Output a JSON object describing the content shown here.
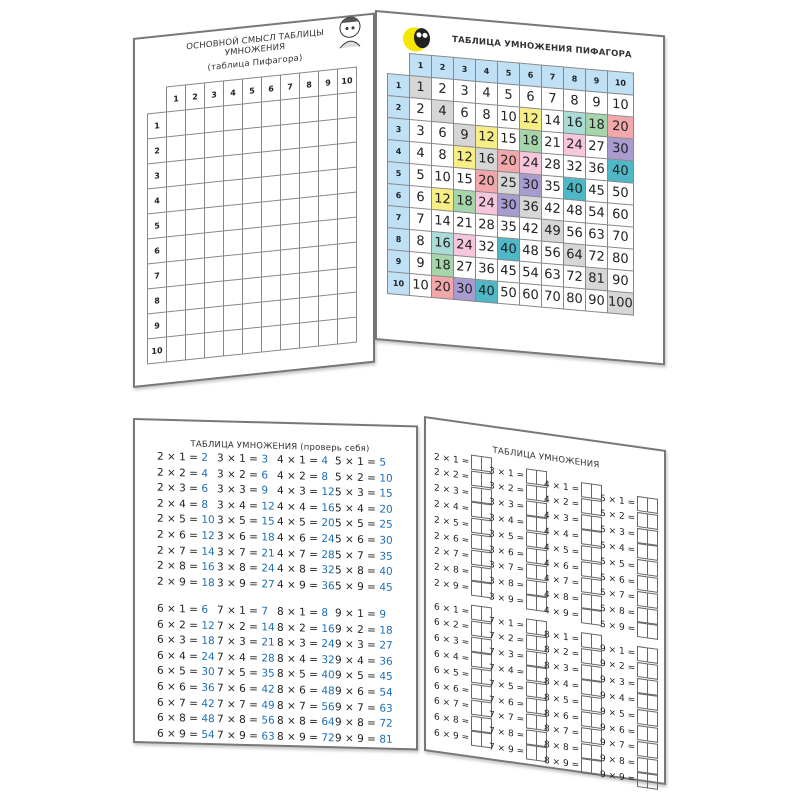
{
  "page1": {
    "title_line1": "ОСНОВНОЙ СМЫСЛ ТАБЛИЦЫ УМНОЖЕНИЯ",
    "title_line2": "(таблица Пифагора)",
    "headers": [
      "1",
      "2",
      "3",
      "4",
      "5",
      "6",
      "7",
      "8",
      "9",
      "10"
    ]
  },
  "page2": {
    "title": "ТАБЛИЦА УМНОЖЕНИЯ ПИФАГОРА",
    "headers": [
      "1",
      "2",
      "3",
      "4",
      "5",
      "6",
      "7",
      "8",
      "9",
      "10"
    ],
    "rows": [
      [
        1,
        2,
        3,
        4,
        5,
        6,
        7,
        8,
        9,
        10
      ],
      [
        2,
        4,
        6,
        8,
        10,
        12,
        14,
        16,
        18,
        20
      ],
      [
        3,
        6,
        9,
        12,
        15,
        18,
        21,
        24,
        27,
        30
      ],
      [
        4,
        8,
        12,
        16,
        20,
        24,
        28,
        32,
        36,
        40
      ],
      [
        5,
        10,
        15,
        20,
        25,
        30,
        35,
        40,
        45,
        50
      ],
      [
        6,
        12,
        18,
        24,
        30,
        36,
        42,
        48,
        54,
        60
      ],
      [
        7,
        14,
        21,
        28,
        35,
        42,
        49,
        56,
        63,
        70
      ],
      [
        8,
        16,
        24,
        32,
        40,
        48,
        56,
        64,
        72,
        80
      ],
      [
        9,
        18,
        27,
        36,
        45,
        54,
        63,
        72,
        81,
        90
      ],
      [
        10,
        20,
        30,
        40,
        50,
        60,
        70,
        80,
        90,
        100
      ]
    ],
    "colors": {
      "header": "#bfe0f5",
      "diagonal": "#d6d6d6",
      "12": "#f7ee86",
      "16": "#a9dcd6",
      "18": "#a6d5ac",
      "20": "#f2a8ab",
      "24": "#f6c6dc",
      "30": "#a79bd0",
      "40": "#4fb8c6"
    }
  },
  "page3": {
    "title": "ТАБЛИЦА УМНОЖЕНИЯ (проверь себя)",
    "answer_color": "#1f6fb5",
    "columns": [
      [
        [
          "2 × 1 = ",
          "2"
        ],
        [
          "2 × 2 = ",
          "4"
        ],
        [
          "2 × 3 = ",
          "6"
        ],
        [
          "2 × 4 = ",
          "8"
        ],
        [
          "2 × 5 = ",
          "10"
        ],
        [
          "2 × 6 = ",
          "12"
        ],
        [
          "2 × 7 = ",
          "14"
        ],
        [
          "2 × 8 = ",
          "16"
        ],
        [
          "2 × 9 = ",
          "18"
        ]
      ],
      [
        [
          "3 × 1 = ",
          "3"
        ],
        [
          "3 × 2 = ",
          "6"
        ],
        [
          "3 × 3 = ",
          "9"
        ],
        [
          "3 × 4 = ",
          "12"
        ],
        [
          "3 × 5 = ",
          "15"
        ],
        [
          "3 × 6 = ",
          "18"
        ],
        [
          "3 × 7 = ",
          "21"
        ],
        [
          "3 × 8 = ",
          "24"
        ],
        [
          "3 × 9 = ",
          "27"
        ]
      ],
      [
        [
          "4 × 1 = ",
          "4"
        ],
        [
          "4 × 2 = ",
          "8"
        ],
        [
          "4 × 3 = ",
          "12"
        ],
        [
          "4 × 4 = ",
          "16"
        ],
        [
          "4 × 5 = ",
          "20"
        ],
        [
          "4 × 6 = ",
          "24"
        ],
        [
          "4 × 7 = ",
          "28"
        ],
        [
          "4 × 8 = ",
          "32"
        ],
        [
          "4 × 9 = ",
          "36"
        ]
      ],
      [
        [
          "5 × 1 = ",
          "5"
        ],
        [
          "5 × 2 = ",
          "10"
        ],
        [
          "5 × 3 = ",
          "15"
        ],
        [
          "5 × 4 = ",
          "20"
        ],
        [
          "5 × 5 = ",
          "25"
        ],
        [
          "5 × 6 = ",
          "30"
        ],
        [
          "5 × 7 = ",
          "35"
        ],
        [
          "5 × 8 = ",
          "40"
        ],
        [
          "5 × 9 = ",
          "45"
        ]
      ],
      [
        [
          "6 × 1 = ",
          "6"
        ],
        [
          "6 × 2 = ",
          "12"
        ],
        [
          "6 × 3 = ",
          "18"
        ],
        [
          "6 × 4 = ",
          "24"
        ],
        [
          "6 × 5 = ",
          "30"
        ],
        [
          "6 × 6 = ",
          "36"
        ],
        [
          "6 × 7 = ",
          "42"
        ],
        [
          "6 × 8 = ",
          "48"
        ],
        [
          "6 × 9 = ",
          "54"
        ]
      ],
      [
        [
          "7 × 1 = ",
          "7"
        ],
        [
          "7 × 2 = ",
          "14"
        ],
        [
          "7 × 3 = ",
          "21"
        ],
        [
          "7 × 4 = ",
          "28"
        ],
        [
          "7 × 5 = ",
          "35"
        ],
        [
          "7 × 6 = ",
          "42"
        ],
        [
          "7 × 7 = ",
          "49"
        ],
        [
          "7 × 8 = ",
          "56"
        ],
        [
          "7 × 9 = ",
          "63"
        ]
      ],
      [
        [
          "8 × 1 = ",
          "8"
        ],
        [
          "8 × 2 = ",
          "16"
        ],
        [
          "8 × 3 = ",
          "24"
        ],
        [
          "8 × 4 = ",
          "32"
        ],
        [
          "8 × 5 = ",
          "40"
        ],
        [
          "8 × 6 = ",
          "48"
        ],
        [
          "8 × 7 = ",
          "56"
        ],
        [
          "8 × 8 = ",
          "64"
        ],
        [
          "8 × 9 = ",
          "72"
        ]
      ],
      [
        [
          "9 × 1 = ",
          "9"
        ],
        [
          "9 × 2 = ",
          "18"
        ],
        [
          "9 × 3 = ",
          "27"
        ],
        [
          "9 × 4 = ",
          "36"
        ],
        [
          "9 × 5 = ",
          "45"
        ],
        [
          "9 × 6 = ",
          "54"
        ],
        [
          "9 × 7 = ",
          "63"
        ],
        [
          "9 × 8 = ",
          "72"
        ],
        [
          "9 × 9 = ",
          "81"
        ]
      ]
    ]
  },
  "page4": {
    "title": "ТАБЛИЦА УМНОЖЕНИЯ",
    "columns": [
      [
        "2 × 1 =",
        "2 × 2 =",
        "2 × 3 =",
        "2 × 4 =",
        "2 × 5 =",
        "2 × 6 =",
        "2 × 7 =",
        "2 × 8 =",
        "2 × 9 ="
      ],
      [
        "3 × 1 =",
        "3 × 2 =",
        "3 × 3 =",
        "3 × 4 =",
        "3 × 5 =",
        "3 × 6 =",
        "3 × 7 =",
        "3 × 8 =",
        "3 × 9 ="
      ],
      [
        "4 × 1 =",
        "4 × 2 =",
        "4 × 3 =",
        "4 × 4 =",
        "4 × 5 =",
        "4 × 6 =",
        "4 × 7 =",
        "4 × 8 =",
        "4 × 9 ="
      ],
      [
        "5 × 1 =",
        "5 × 2 =",
        "5 × 3 =",
        "5 × 4 =",
        "5 × 5 =",
        "5 × 6 =",
        "5 × 7 =",
        "5 × 8 =",
        "5 × 9 ="
      ],
      [
        "6 × 1 =",
        "6 × 2 =",
        "6 × 3 =",
        "6 × 4 =",
        "6 × 5 =",
        "6 × 6 =",
        "6 × 7 =",
        "6 × 8 =",
        "6 × 9 ="
      ],
      [
        "7 × 1 =",
        "7 × 2 =",
        "7 × 3 =",
        "7 × 4 =",
        "7 × 5 =",
        "7 × 6 =",
        "7 × 7 =",
        "7 × 8 =",
        "7 × 9 ="
      ],
      [
        "8 × 1 =",
        "8 × 2 =",
        "8 × 3 =",
        "8 × 4 =",
        "8 × 5 =",
        "8 × 6 =",
        "8 × 7 =",
        "8 × 8 =",
        "8 × 9 ="
      ],
      [
        "9 × 1 =",
        "9 × 2 =",
        "9 × 3 =",
        "9 × 4 =",
        "9 × 5 =",
        "9 × 6 =",
        "9 × 7 =",
        "9 × 8 =",
        "9 × 9 ="
      ]
    ]
  }
}
